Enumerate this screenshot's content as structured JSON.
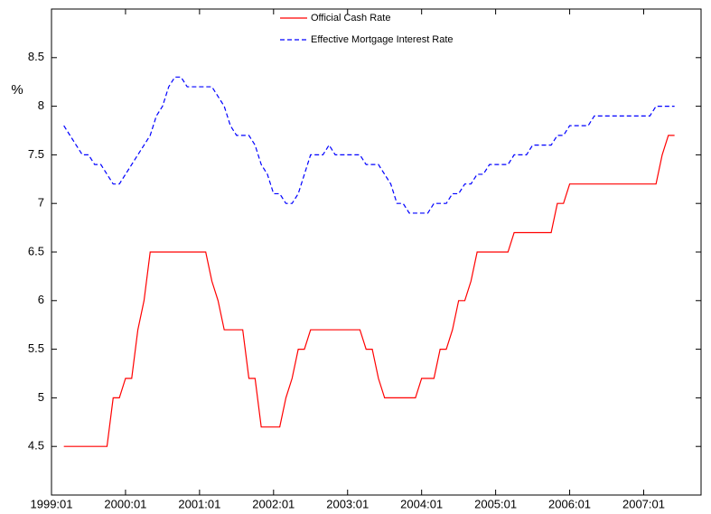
{
  "chart_data": {
    "type": "line",
    "y_label": "%",
    "categories": [
      "1999:01",
      null,
      null,
      null,
      null,
      null,
      null,
      null,
      null,
      null,
      null,
      null,
      "2000:01",
      null,
      null,
      null,
      null,
      null,
      null,
      null,
      null,
      null,
      null,
      null,
      "2001:01",
      null,
      null,
      null,
      null,
      null,
      null,
      null,
      null,
      null,
      null,
      null,
      "2002:01",
      null,
      null,
      null,
      null,
      null,
      null,
      null,
      null,
      null,
      null,
      null,
      "2003:01",
      null,
      null,
      null,
      null,
      null,
      null,
      null,
      null,
      null,
      null,
      null,
      "2004:01",
      null,
      null,
      null,
      null,
      null,
      null,
      null,
      null,
      null,
      null,
      null,
      "2005:01",
      null,
      null,
      null,
      null,
      null,
      null,
      null,
      null,
      null,
      null,
      null,
      "2006:01",
      null,
      null,
      null,
      null,
      null,
      null,
      null,
      null,
      null,
      null,
      null,
      "2007:01",
      null,
      null,
      null,
      null,
      null
    ],
    "series": [
      {
        "name": "Official Cash Rate",
        "color": "#ff0000",
        "dash": false,
        "values": [
          null,
          null,
          4.5,
          4.5,
          4.5,
          4.5,
          4.5,
          4.5,
          4.5,
          4.5,
          5.0,
          5.0,
          5.2,
          5.2,
          5.7,
          6.0,
          6.5,
          6.5,
          6.5,
          6.5,
          6.5,
          6.5,
          6.5,
          6.5,
          6.5,
          6.5,
          6.2,
          6.0,
          5.7,
          5.7,
          5.7,
          5.7,
          5.2,
          5.2,
          4.7,
          4.7,
          4.7,
          4.7,
          5.0,
          5.2,
          5.5,
          5.5,
          5.7,
          5.7,
          5.7,
          5.7,
          5.7,
          5.7,
          5.7,
          5.7,
          5.7,
          5.5,
          5.5,
          5.2,
          5.0,
          5.0,
          5.0,
          5.0,
          5.0,
          5.0,
          5.2,
          5.2,
          5.2,
          5.5,
          5.5,
          5.7,
          6.0,
          6.0,
          6.2,
          6.5,
          6.5,
          6.5,
          6.5,
          6.5,
          6.5,
          6.7,
          6.7,
          6.7,
          6.7,
          6.7,
          6.7,
          6.7,
          7.0,
          7.0,
          7.2,
          7.2,
          7.2,
          7.2,
          7.2,
          7.2,
          7.2,
          7.2,
          7.2,
          7.2,
          7.2,
          7.2,
          7.2,
          7.2,
          7.2,
          7.5,
          7.7,
          7.7
        ]
      },
      {
        "name": "Effective Mortgage Interest Rate",
        "color": "#0000ff",
        "dash": true,
        "values": [
          null,
          null,
          7.8,
          7.7,
          7.6,
          7.5,
          7.5,
          7.4,
          7.4,
          7.3,
          7.2,
          7.2,
          7.3,
          7.4,
          7.5,
          7.6,
          7.7,
          7.9,
          8.0,
          8.2,
          8.3,
          8.3,
          8.2,
          8.2,
          8.2,
          8.2,
          8.2,
          8.1,
          8.0,
          7.8,
          7.7,
          7.7,
          7.7,
          7.6,
          7.4,
          7.3,
          7.1,
          7.1,
          7.0,
          7.0,
          7.1,
          7.3,
          7.5,
          7.5,
          7.5,
          7.6,
          7.5,
          7.5,
          7.5,
          7.5,
          7.5,
          7.4,
          7.4,
          7.4,
          7.3,
          7.2,
          7.0,
          7.0,
          6.9,
          6.9,
          6.9,
          6.9,
          7.0,
          7.0,
          7.0,
          7.1,
          7.1,
          7.2,
          7.2,
          7.3,
          7.3,
          7.4,
          7.4,
          7.4,
          7.4,
          7.5,
          7.5,
          7.5,
          7.6,
          7.6,
          7.6,
          7.6,
          7.7,
          7.7,
          7.8,
          7.8,
          7.8,
          7.8,
          7.9,
          7.9,
          7.9,
          7.9,
          7.9,
          7.9,
          7.9,
          7.9,
          7.9,
          7.9,
          8.0,
          8.0,
          8.0,
          8.0
        ]
      }
    ],
    "ylim": [
      4,
      9
    ],
    "yticks": [
      4.5,
      5,
      5.5,
      6,
      6.5,
      7,
      7.5,
      8,
      8.5
    ],
    "grid": false,
    "legend": "top"
  }
}
